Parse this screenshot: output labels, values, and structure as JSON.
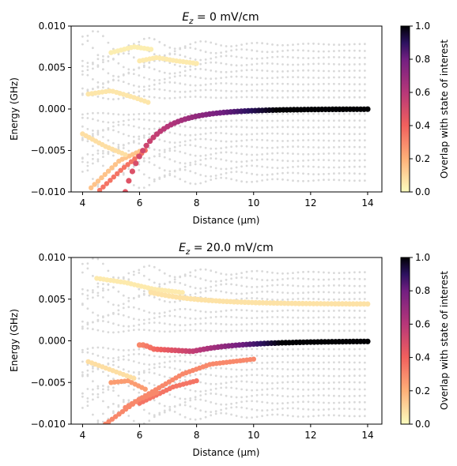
{
  "chart_data": [
    {
      "type": "scatter",
      "title_prefix": "E",
      "title_sub": "z",
      "title_suffix": " = 0 mV/cm",
      "xlabel": "Distance (μm)",
      "ylabel": "Energy (GHz)",
      "xlim": [
        3.6,
        14.5
      ],
      "ylim": [
        -0.01,
        0.01
      ],
      "xticks": [
        "4",
        "6",
        "8",
        "10",
        "12",
        "14"
      ],
      "yticks": [
        "0.010",
        "0.005",
        "0.000",
        "−0.005",
        "−0.010"
      ],
      "colorbar": {
        "label": "Overlap with state of interest",
        "ticks": [
          "1.0",
          "0.8",
          "0.6",
          "0.4",
          "0.2",
          "0.0"
        ],
        "colormap": "magma_r"
      },
      "background_grey": "#d9d9d9",
      "grey_levels": [
        0.0078,
        0.007,
        0.0062,
        0.0054,
        0.0046,
        0.0038,
        0.003,
        0.0022,
        0.0014,
        -0.0006,
        -0.0014,
        -0.0022,
        -0.003,
        -0.0038,
        -0.0046,
        -0.0054,
        -0.0062,
        -0.007,
        -0.0078,
        -0.0086
      ],
      "main_curve": {
        "x_start": 5.5,
        "x_end": 14.0,
        "n": 70,
        "y": "approaches 0.000 GHz from below (−0.010 at 5.5 μm)",
        "overlap_start": 0.45,
        "overlap_end": 1.0
      },
      "branches": [
        {
          "x": [
            4.3,
            5.3,
            6.0
          ],
          "y": [
            -0.0095,
            -0.0062,
            -0.0051
          ],
          "overlap": 0.15
        },
        {
          "x": [
            4.6,
            5.4,
            6.2
          ],
          "y": [
            -0.0098,
            -0.0072,
            -0.005
          ],
          "overlap": 0.35
        },
        {
          "x": [
            6.0,
            6.6,
            7.3,
            8.0
          ],
          "y": [
            0.0058,
            0.0062,
            0.0058,
            0.0055
          ],
          "overlap": 0.05
        },
        {
          "x": [
            4.2,
            5.0,
            5.8,
            6.3
          ],
          "y": [
            0.0018,
            0.0022,
            0.0014,
            0.0008
          ],
          "overlap": 0.06
        },
        {
          "x": [
            4.0,
            4.8,
            5.5
          ],
          "y": [
            -0.003,
            -0.0045,
            -0.0055
          ],
          "overlap": 0.08
        },
        {
          "x": [
            5.0,
            5.8,
            6.4
          ],
          "y": [
            0.0068,
            0.0075,
            0.0072
          ],
          "overlap": 0.04
        }
      ]
    },
    {
      "type": "scatter",
      "title_prefix": "E",
      "title_sub": "z",
      "title_suffix": " = 20.0 mV/cm",
      "xlabel": "Distance (μm)",
      "ylabel": "Energy (GHz)",
      "xlim": [
        3.6,
        14.5
      ],
      "ylim": [
        -0.01,
        0.01
      ],
      "xticks": [
        "4",
        "6",
        "8",
        "10",
        "12",
        "14"
      ],
      "yticks": [
        "0.010",
        "0.005",
        "0.000",
        "−0.005",
        "−0.010"
      ],
      "colorbar": {
        "label": "Overlap with state of interest",
        "ticks": [
          "1.0",
          "0.8",
          "0.6",
          "0.4",
          "0.2",
          "0.0"
        ],
        "colormap": "magma_r"
      },
      "background_grey": "#d9d9d9",
      "grey_levels": [
        0.0082,
        0.0074,
        0.0066,
        0.0058,
        0.005,
        0.0036,
        0.0028,
        0.002,
        0.0012,
        -0.001,
        -0.0018,
        -0.0026,
        -0.0034,
        -0.0042,
        -0.005,
        -0.0058,
        -0.0066,
        -0.0074,
        -0.0082,
        -0.009
      ],
      "main_curve": {
        "x_start": 6.0,
        "x_end": 14.0,
        "n": 65,
        "y": "dips to −0.0012 near 8 μm then approaches 0.000 GHz",
        "overlap_start": 0.3,
        "overlap_end": 1.0
      },
      "upper_curve": {
        "x_start": 6.4,
        "x_end": 14.0,
        "y_end": 0.0044,
        "overlap": 0.07
      },
      "branches": [
        {
          "x": [
            5.5,
            6.5,
            7.5,
            8.5,
            9.5,
            10.0
          ],
          "y": [
            -0.008,
            -0.006,
            -0.004,
            -0.0028,
            -0.0024,
            -0.0022
          ],
          "overlap": 0.3
        },
        {
          "x": [
            6.0,
            6.6,
            7.2,
            8.0
          ],
          "y": [
            -0.0075,
            -0.0065,
            -0.0055,
            -0.0048
          ],
          "overlap": 0.35
        },
        {
          "x": [
            5.0,
            5.6,
            6.2
          ],
          "y": [
            -0.005,
            -0.0048,
            -0.0058
          ],
          "overlap": 0.25
        },
        {
          "x": [
            4.8,
            5.4,
            6.0,
            6.6
          ],
          "y": [
            -0.01,
            -0.0085,
            -0.007,
            -0.0062
          ],
          "overlap": 0.3
        },
        {
          "x": [
            4.5,
            5.5,
            6.5,
            7.5
          ],
          "y": [
            0.0075,
            0.007,
            0.0062,
            0.0058
          ],
          "overlap": 0.05
        },
        {
          "x": [
            4.2,
            5.0,
            5.8
          ],
          "y": [
            -0.0025,
            -0.0035,
            -0.0045
          ],
          "overlap": 0.08
        }
      ]
    }
  ]
}
